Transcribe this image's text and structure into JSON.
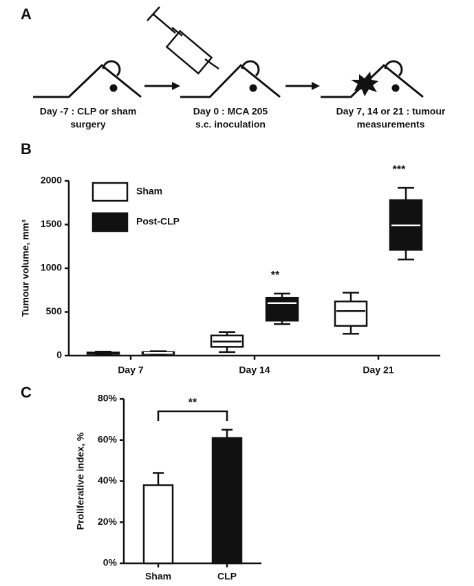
{
  "panel_a": {
    "label": "A",
    "steps": [
      {
        "lines": [
          "Day -7 : CLP or sham",
          "surgery"
        ]
      },
      {
        "lines": [
          "Day 0 : MCA 205",
          "s.c. inoculation"
        ]
      },
      {
        "lines": [
          "Day 7, 14 or 21 : tumour",
          "measurements"
        ]
      }
    ]
  },
  "chart_data": [
    {
      "type": "box",
      "panel": "B",
      "ylabel": "Tumour volume, mm³",
      "categories": [
        "Day 7",
        "Day 14",
        "Day 21"
      ],
      "series": [
        {
          "name": "Sham",
          "color": "#ffffff",
          "values": [
            [
              10,
              20,
              25,
              35,
              45
            ],
            [
              40,
              100,
              160,
              230,
              270
            ],
            [
              250,
              340,
              510,
              620,
              720
            ]
          ]
        },
        {
          "name": "Post-CLP",
          "color": "#111111",
          "values": [
            [
              10,
              20,
              30,
              40,
              50
            ],
            [
              360,
              400,
              600,
              660,
              710
            ],
            [
              1100,
              1210,
              1490,
              1780,
              1920
            ]
          ]
        }
      ],
      "annotations": [
        null,
        "**",
        "***"
      ],
      "ylim": [
        0,
        2000
      ],
      "yticks": [
        0,
        500,
        1000,
        1500,
        2000
      ],
      "legend": "upper left"
    },
    {
      "type": "bar",
      "panel": "C",
      "ylabel": "Proliferative index, %",
      "categories": [
        "Sham",
        "CLP"
      ],
      "values": [
        38,
        61
      ],
      "errors": [
        6,
        4
      ],
      "colors": [
        "#ffffff",
        "#111111"
      ],
      "annotation": "**",
      "ylim": [
        0,
        80
      ],
      "yticks": [
        {
          "value": 0,
          "label": "0%"
        },
        {
          "value": 20,
          "label": "20%"
        },
        {
          "value": 40,
          "label": "40%"
        },
        {
          "value": 60,
          "label": "60%"
        },
        {
          "value": 80,
          "label": "80%"
        }
      ]
    }
  ]
}
